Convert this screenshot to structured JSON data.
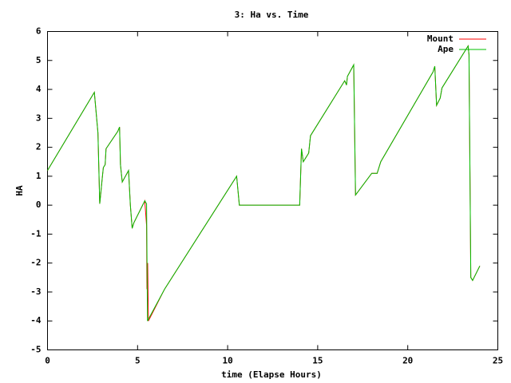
{
  "chart_data": {
    "type": "line",
    "title": "3: Ha vs. Time",
    "x_label": "time (Elapse Hours)",
    "y_label": "HA",
    "xlim": [
      0,
      25
    ],
    "ylim": [
      -5,
      6
    ],
    "xticks": [
      0,
      5,
      10,
      15,
      20,
      25
    ],
    "yticks": [
      -5,
      -4,
      -3,
      -2,
      -1,
      0,
      1,
      2,
      3,
      4,
      5,
      6
    ],
    "legend_position": "top-right",
    "series": [
      {
        "name": "Mount",
        "color": "#ff0000",
        "x": [
          0,
          2.6,
          2.8,
          2.9,
          3.05,
          3.1,
          3.2,
          3.25,
          3.9,
          4.0,
          4.05,
          4.15,
          4.5,
          4.6,
          4.7,
          4.8,
          5.4,
          5.5,
          5.52,
          5.56,
          5.6,
          6.5,
          10.5,
          10.65,
          14.0,
          14.1,
          14.2,
          14.5,
          14.6,
          16.5,
          16.6,
          16.65,
          17.0,
          17.1,
          18.0,
          18.3,
          18.5,
          21.4,
          21.5,
          21.6,
          21.8,
          21.9,
          23.35,
          23.4,
          23.5,
          23.6,
          24.0
        ],
        "values": [
          1.2,
          3.9,
          2.5,
          0.05,
          1.0,
          1.3,
          1.4,
          1.95,
          2.55,
          2.7,
          1.4,
          0.8,
          1.2,
          0.0,
          -0.8,
          -0.6,
          0.15,
          -0.7,
          -2.9,
          -2.0,
          -4.0,
          -2.9,
          1.0,
          0.0,
          0.0,
          1.95,
          1.5,
          1.8,
          2.4,
          4.3,
          4.15,
          4.45,
          4.85,
          0.35,
          1.1,
          1.1,
          1.5,
          4.6,
          4.8,
          3.45,
          3.7,
          4.05,
          5.5,
          5.2,
          -2.5,
          -2.6,
          -2.1
        ]
      },
      {
        "name": "Ape",
        "color": "#00c000",
        "x": [
          0,
          2.6,
          2.8,
          2.9,
          3.05,
          3.1,
          3.2,
          3.25,
          3.9,
          4.0,
          4.05,
          4.15,
          4.5,
          4.6,
          4.7,
          4.8,
          5.4,
          5.5,
          5.55,
          6.5,
          10.5,
          10.65,
          14.0,
          14.1,
          14.2,
          14.5,
          14.6,
          16.5,
          16.6,
          16.65,
          17.0,
          17.1,
          18.0,
          18.3,
          18.5,
          21.4,
          21.5,
          21.6,
          21.8,
          21.9,
          23.35,
          23.4,
          23.5,
          23.6,
          24.0
        ],
        "values": [
          1.2,
          3.9,
          2.5,
          0.05,
          1.0,
          1.3,
          1.4,
          1.95,
          2.55,
          2.7,
          1.4,
          0.8,
          1.2,
          0.0,
          -0.8,
          -0.6,
          0.15,
          0.05,
          -4.0,
          -2.9,
          1.0,
          0.0,
          0.0,
          1.95,
          1.5,
          1.8,
          2.4,
          4.3,
          4.15,
          4.45,
          4.85,
          0.35,
          1.1,
          1.1,
          1.5,
          4.6,
          4.8,
          3.45,
          3.7,
          4.05,
          5.5,
          5.2,
          -2.5,
          -2.6,
          -2.1
        ]
      }
    ]
  }
}
